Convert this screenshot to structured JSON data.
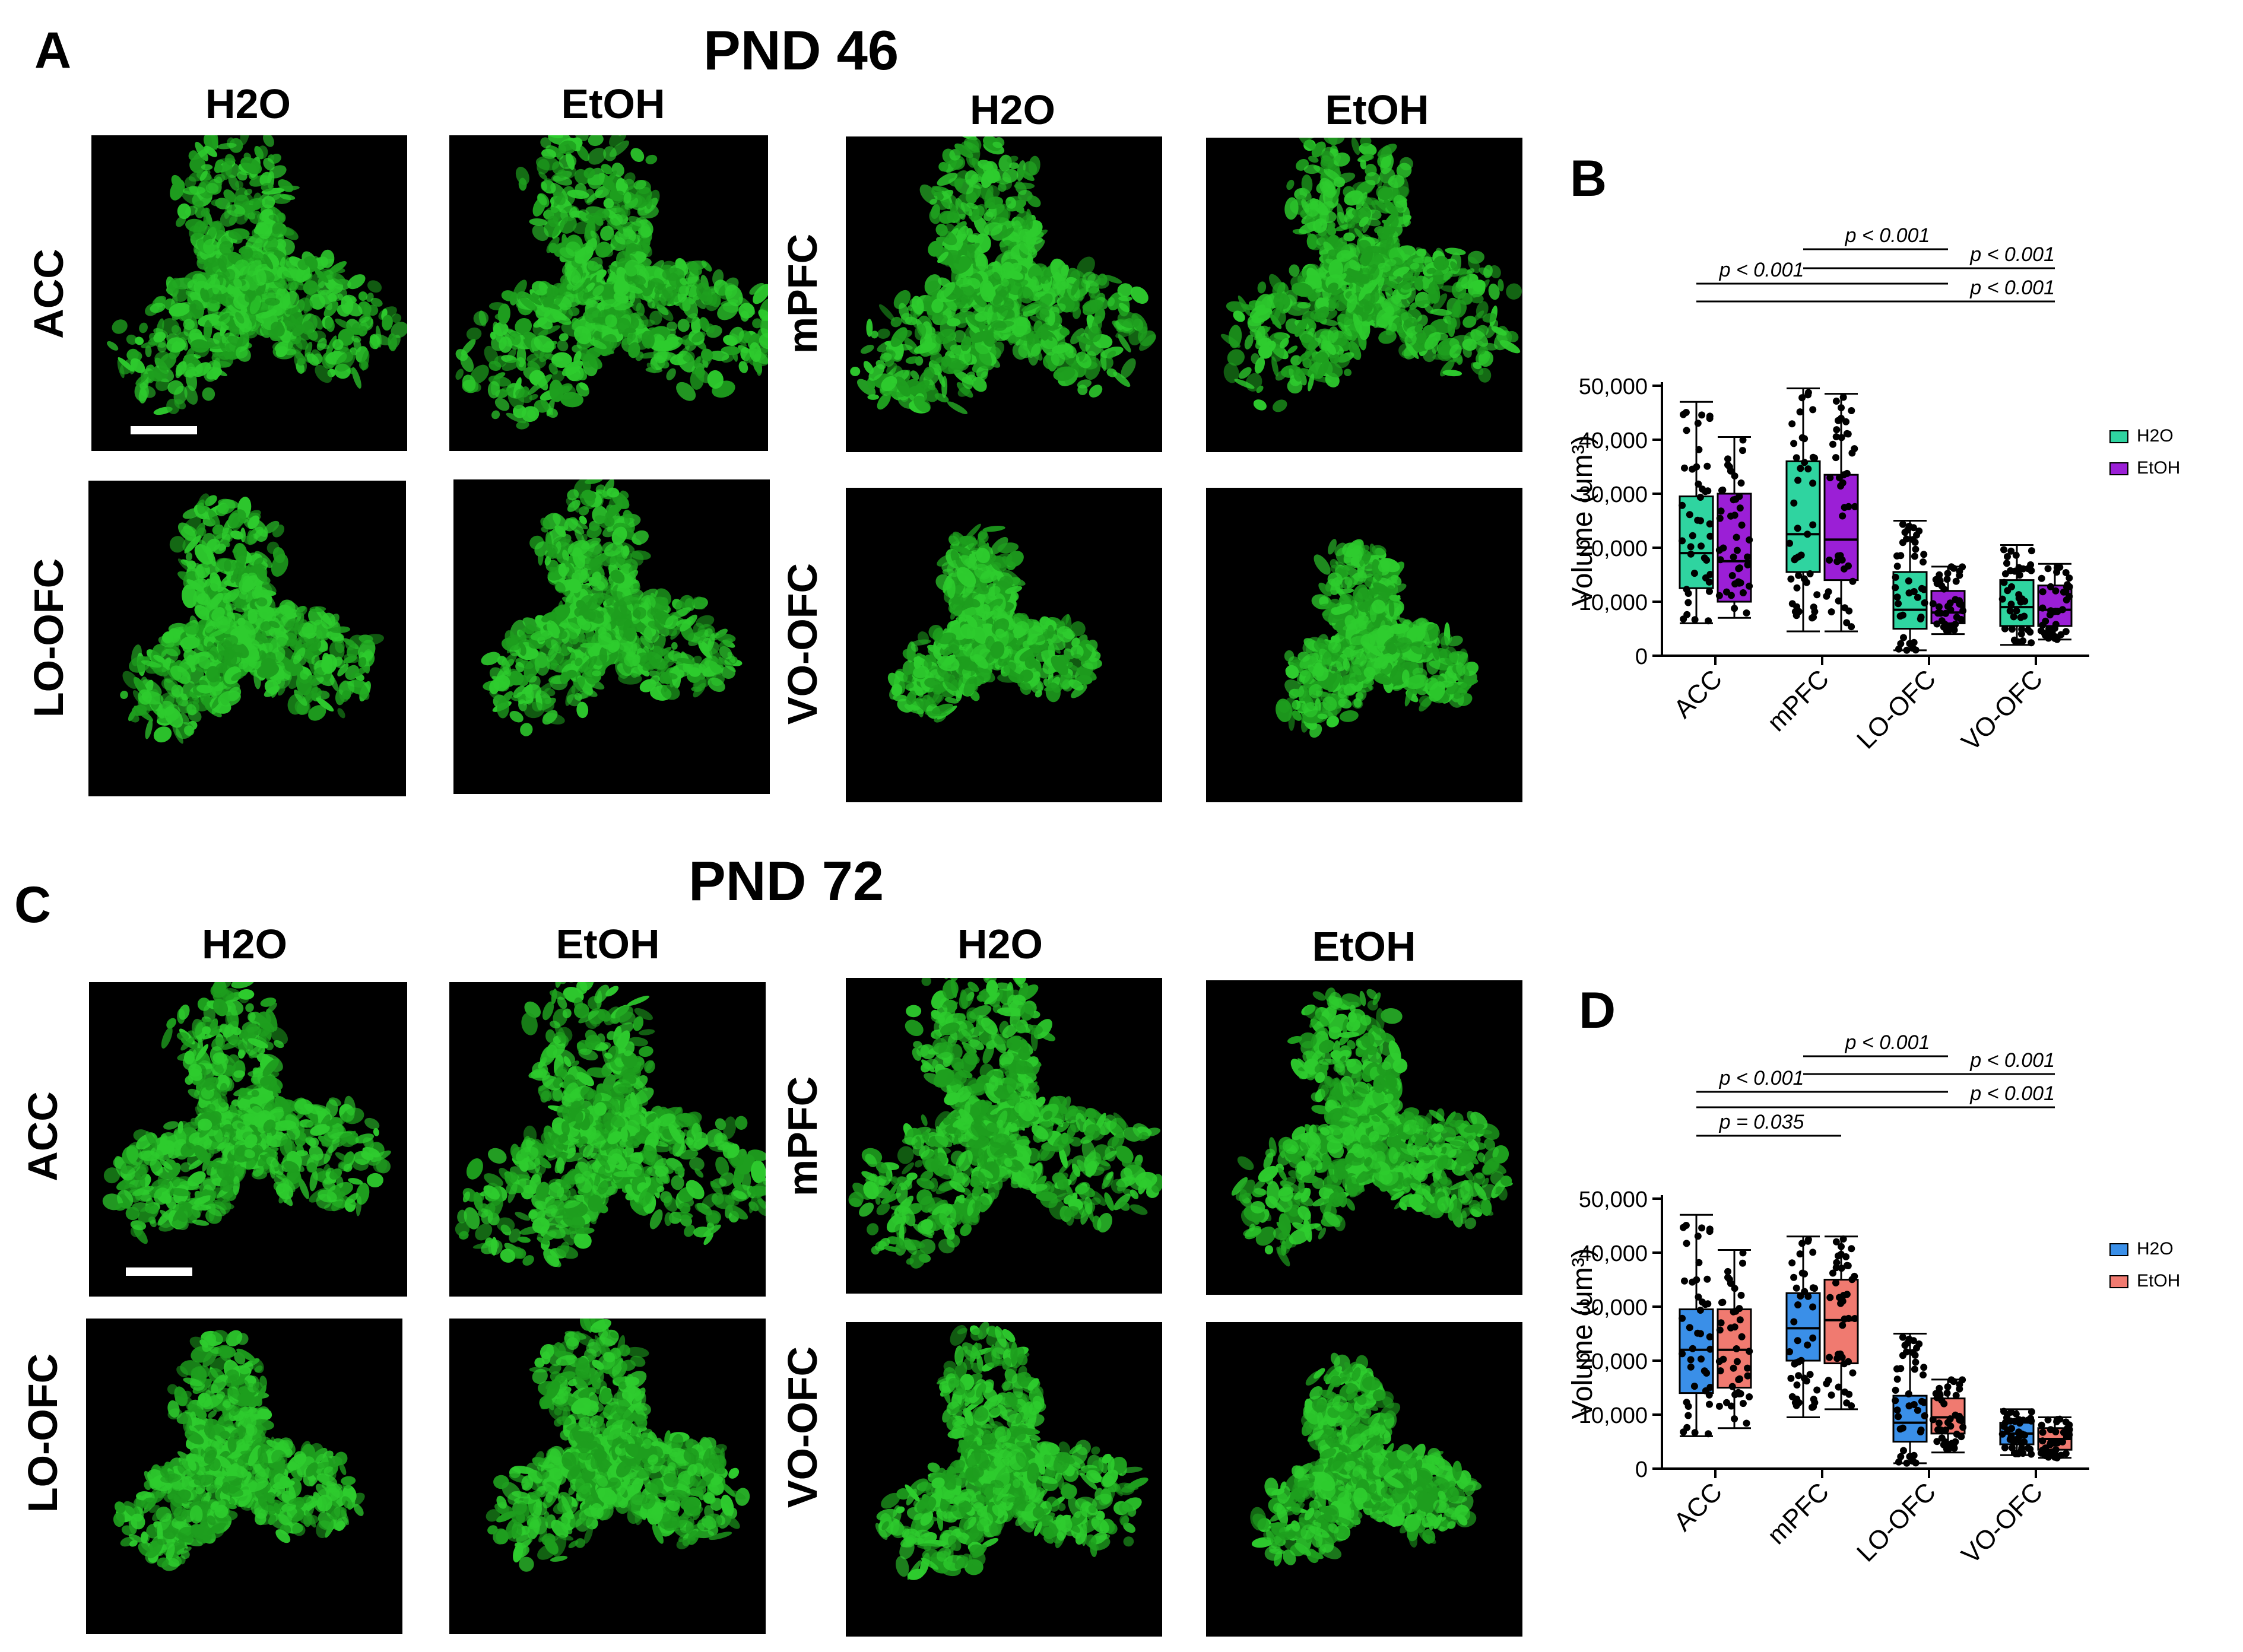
{
  "panels": {
    "A": {
      "letter": "A",
      "title": "PND 46"
    },
    "B": {
      "letter": "B"
    },
    "C": {
      "letter": "C",
      "title": "PND 72"
    },
    "D": {
      "letter": "D"
    }
  },
  "columns": {
    "h2o": "H2O",
    "etoh": "EtOH"
  },
  "regions": {
    "acc": "ACC",
    "mpfc": "mPFC",
    "lo": "LO-OFC",
    "vo": "VO-OFC"
  },
  "colors": {
    "cell_green": "#2ecc2e",
    "b_h2o": "#2fd4a0",
    "b_etoh": "#9b1fd6",
    "d_h2o": "#3a8fe8",
    "d_etoh": "#f07a70"
  },
  "chart_data": [
    {
      "id": "B",
      "type": "box",
      "ylabel": "Volume (um³)",
      "ylim": [
        0,
        50000
      ],
      "yticks": [
        "0",
        "10,000",
        "20,000",
        "30,000",
        "40,000",
        "50,000"
      ],
      "categories": [
        "ACC",
        "mPFC",
        "LO-OFC",
        "VO-OFC"
      ],
      "legend_position": "top-right",
      "series": [
        {
          "name": "H2O",
          "boxes": [
            {
              "min": 6000,
              "q1": 12500,
              "median": 19000,
              "q3": 29500,
              "max": 47000
            },
            {
              "min": 4500,
              "q1": 15500,
              "median": 22500,
              "q3": 36000,
              "max": 49500
            },
            {
              "min": 1000,
              "q1": 5000,
              "median": 8500,
              "q3": 15500,
              "max": 25000
            },
            {
              "min": 2000,
              "q1": 5500,
              "median": 9000,
              "q3": 14000,
              "max": 20500
            }
          ]
        },
        {
          "name": "EtOH",
          "boxes": [
            {
              "min": 7000,
              "q1": 10000,
              "median": 17500,
              "q3": 30000,
              "max": 40500
            },
            {
              "min": 4500,
              "q1": 14000,
              "median": 21500,
              "q3": 33500,
              "max": 48500
            },
            {
              "min": 4000,
              "q1": 6000,
              "median": 8000,
              "q3": 12000,
              "max": 16500
            },
            {
              "min": 3000,
              "q1": 5500,
              "median": 8500,
              "q3": 13000,
              "max": 17000
            }
          ]
        }
      ],
      "annotations": [
        {
          "text": "p < 0.001",
          "from": 1,
          "to": 2
        },
        {
          "text": "p < 0.001",
          "from": 0,
          "to": 2
        },
        {
          "text": "p < 0.001",
          "from": 1,
          "to": 3
        },
        {
          "text": "p < 0.001",
          "from": 0,
          "to": 3
        }
      ]
    },
    {
      "id": "D",
      "type": "box",
      "ylabel": "Volume (um³)",
      "ylim": [
        0,
        50000
      ],
      "yticks": [
        "0",
        "10,000",
        "20,000",
        "30,000",
        "40,000",
        "50,000"
      ],
      "categories": [
        "ACC",
        "mPFC",
        "LO-OFC",
        "VO-OFC"
      ],
      "legend_position": "top-right",
      "series": [
        {
          "name": "H2O",
          "boxes": [
            {
              "min": 6000,
              "q1": 14000,
              "median": 22000,
              "q3": 29500,
              "max": 47000
            },
            {
              "min": 9500,
              "q1": 20000,
              "median": 26000,
              "q3": 32500,
              "max": 43000
            },
            {
              "min": 1000,
              "q1": 5000,
              "median": 8500,
              "q3": 13500,
              "max": 25000
            },
            {
              "min": 2500,
              "q1": 4500,
              "median": 6500,
              "q3": 8500,
              "max": 11000
            }
          ]
        },
        {
          "name": "EtOH",
          "boxes": [
            {
              "min": 7500,
              "q1": 15000,
              "median": 22000,
              "q3": 29500,
              "max": 40500
            },
            {
              "min": 11000,
              "q1": 19500,
              "median": 27500,
              "q3": 35000,
              "max": 43000
            },
            {
              "min": 3000,
              "q1": 6500,
              "median": 9500,
              "q3": 13000,
              "max": 16500
            },
            {
              "min": 2000,
              "q1": 3500,
              "median": 5500,
              "q3": 7500,
              "max": 9500
            }
          ]
        }
      ],
      "annotations": [
        {
          "text": "p < 0.001",
          "from": 1,
          "to": 2
        },
        {
          "text": "p < 0.001",
          "from": 0,
          "to": 2
        },
        {
          "text": "p = 0.035",
          "from": 0,
          "to": 1
        },
        {
          "text": "p < 0.001",
          "from": 1,
          "to": 3
        },
        {
          "text": "p < 0.001",
          "from": 0,
          "to": 3
        }
      ]
    }
  ]
}
